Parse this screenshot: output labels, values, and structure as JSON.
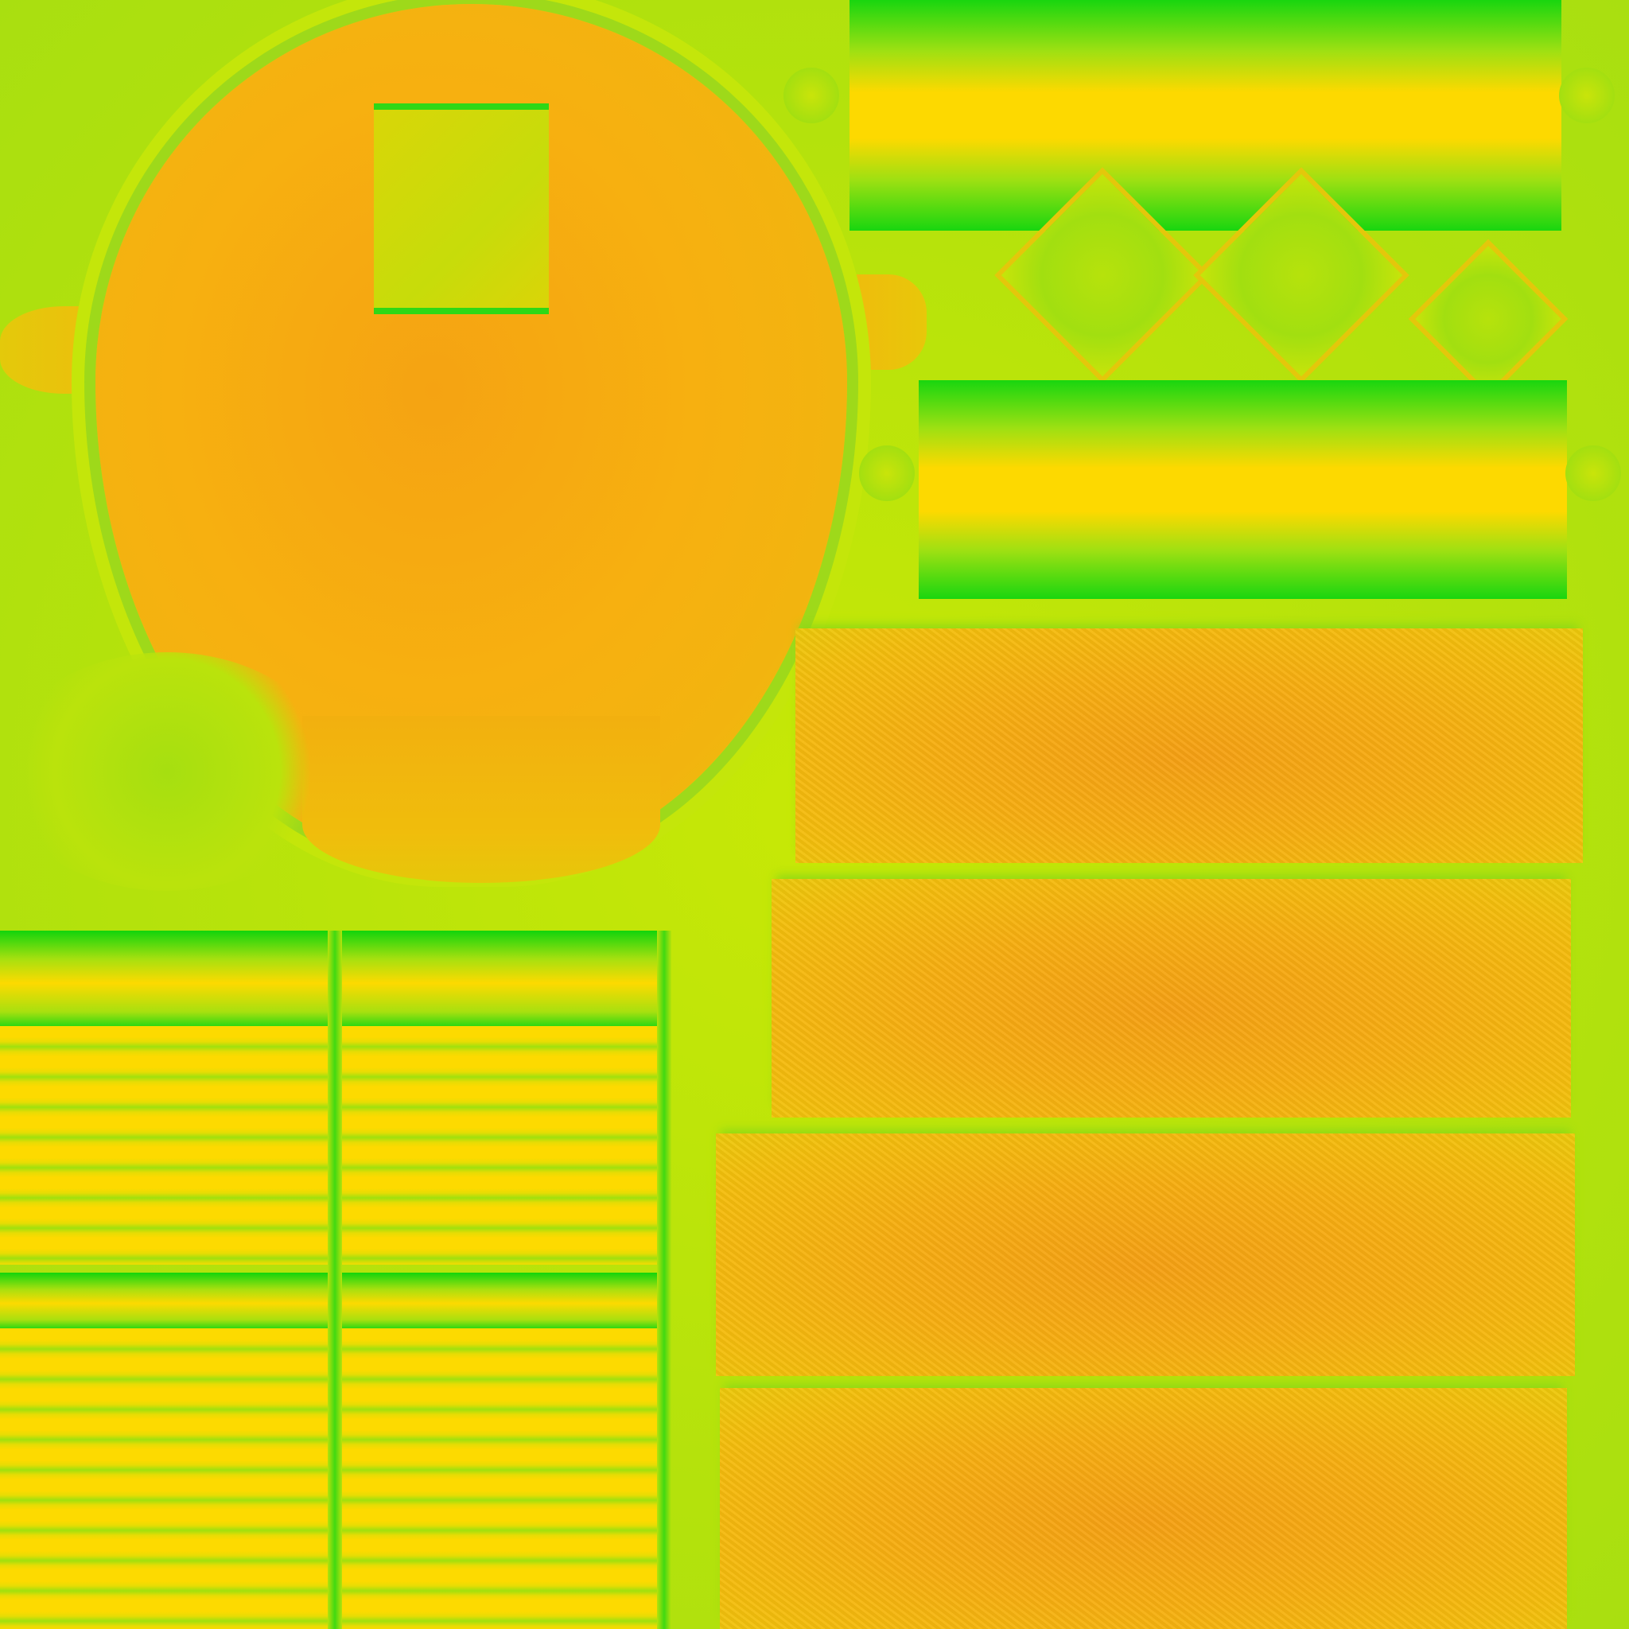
{
  "image": {
    "kind": "uv texture atlas",
    "palette": {
      "background": "#b7e40a",
      "orange": "#f7ae11",
      "yellow": "#fdd900",
      "green": "#19d60f"
    },
    "regions": [
      "round-patch",
      "top-band-1",
      "top-band-2",
      "textured-slab-1",
      "textured-slab-2",
      "textured-slab-3",
      "textured-slab-4",
      "striped-panel-upper",
      "striped-panel-lower"
    ]
  }
}
